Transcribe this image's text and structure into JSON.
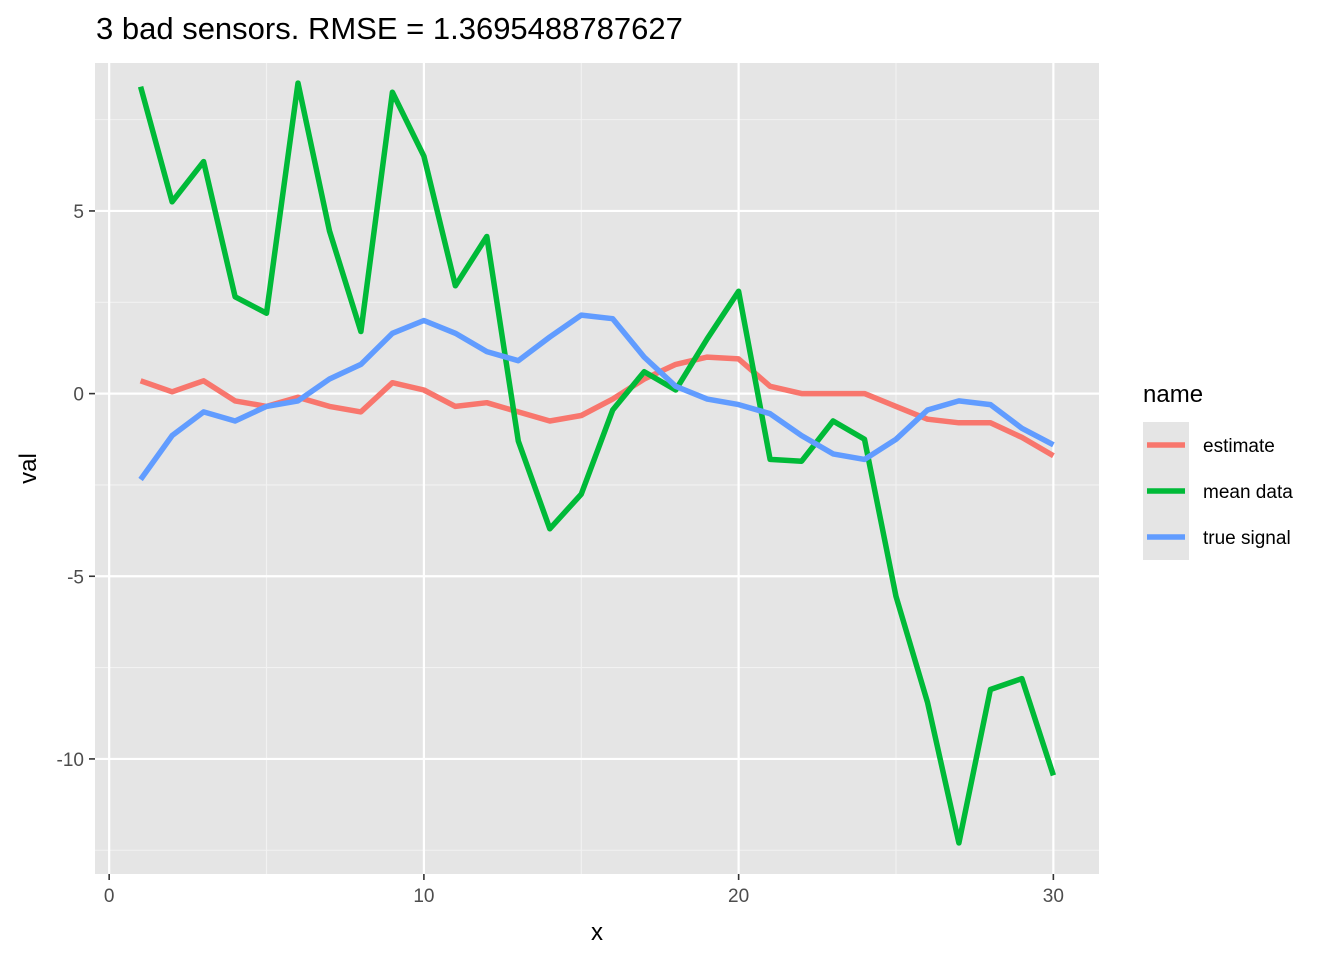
{
  "chart_data": {
    "type": "line",
    "title": "3 bad sensors. RMSE = 1.3695488787627",
    "xlabel": "x",
    "ylabel": "val",
    "xlim": [
      -0.45,
      31.45
    ],
    "ylim": [
      -13.15,
      9.05
    ],
    "x_ticks": [
      0,
      10,
      20,
      30
    ],
    "x_tick_labels": [
      "0",
      "10",
      "20",
      "30"
    ],
    "y_ticks": [
      -10,
      -5,
      0,
      5
    ],
    "y_tick_labels": [
      "-10",
      "-5",
      "0",
      "5"
    ],
    "grid": true,
    "legend": {
      "title": "name",
      "position": "right"
    },
    "x": [
      1,
      2,
      3,
      4,
      5,
      6,
      7,
      8,
      9,
      10,
      11,
      12,
      13,
      14,
      15,
      16,
      17,
      18,
      19,
      20,
      21,
      22,
      23,
      24,
      25,
      26,
      27,
      28,
      29,
      30
    ],
    "series": [
      {
        "name": "estimate",
        "color": "#F8766D",
        "values": [
          0.35,
          0.05,
          0.35,
          -0.2,
          -0.35,
          -0.1,
          -0.35,
          -0.5,
          0.3,
          0.1,
          -0.35,
          -0.25,
          -0.5,
          -0.75,
          -0.6,
          -0.15,
          0.4,
          0.8,
          1.0,
          0.95,
          0.2,
          0.0,
          0.0,
          0.0,
          -0.35,
          -0.7,
          -0.8,
          -0.8,
          -1.2,
          -1.7
        ]
      },
      {
        "name": "mean data",
        "color": "#00BA38",
        "values": [
          8.4,
          5.25,
          6.35,
          2.65,
          2.2,
          8.5,
          4.45,
          1.7,
          8.25,
          6.5,
          2.95,
          4.3,
          -1.3,
          -3.7,
          -2.75,
          -0.45,
          0.6,
          0.1,
          1.5,
          2.8,
          -1.8,
          -1.85,
          -0.75,
          -1.25,
          -5.55,
          -8.45,
          -12.3,
          -8.1,
          -7.8,
          -10.45
        ]
      },
      {
        "name": "true signal",
        "color": "#619CFF",
        "values": [
          -2.35,
          -1.15,
          -0.5,
          -0.75,
          -0.35,
          -0.2,
          0.4,
          0.8,
          1.65,
          2.0,
          1.65,
          1.15,
          0.9,
          1.55,
          2.15,
          2.05,
          1.0,
          0.2,
          -0.15,
          -0.3,
          -0.55,
          -1.15,
          -1.65,
          -1.8,
          -1.25,
          -0.45,
          -0.2,
          -0.3,
          -0.95,
          -1.4
        ]
      }
    ]
  },
  "colors": {
    "panel_background": "#E5E5E5",
    "grid_major": "#FFFFFF",
    "grid_minor": "#F2F2F2",
    "tick_text": "#4D4D4D",
    "tick_mark": "#333333"
  }
}
